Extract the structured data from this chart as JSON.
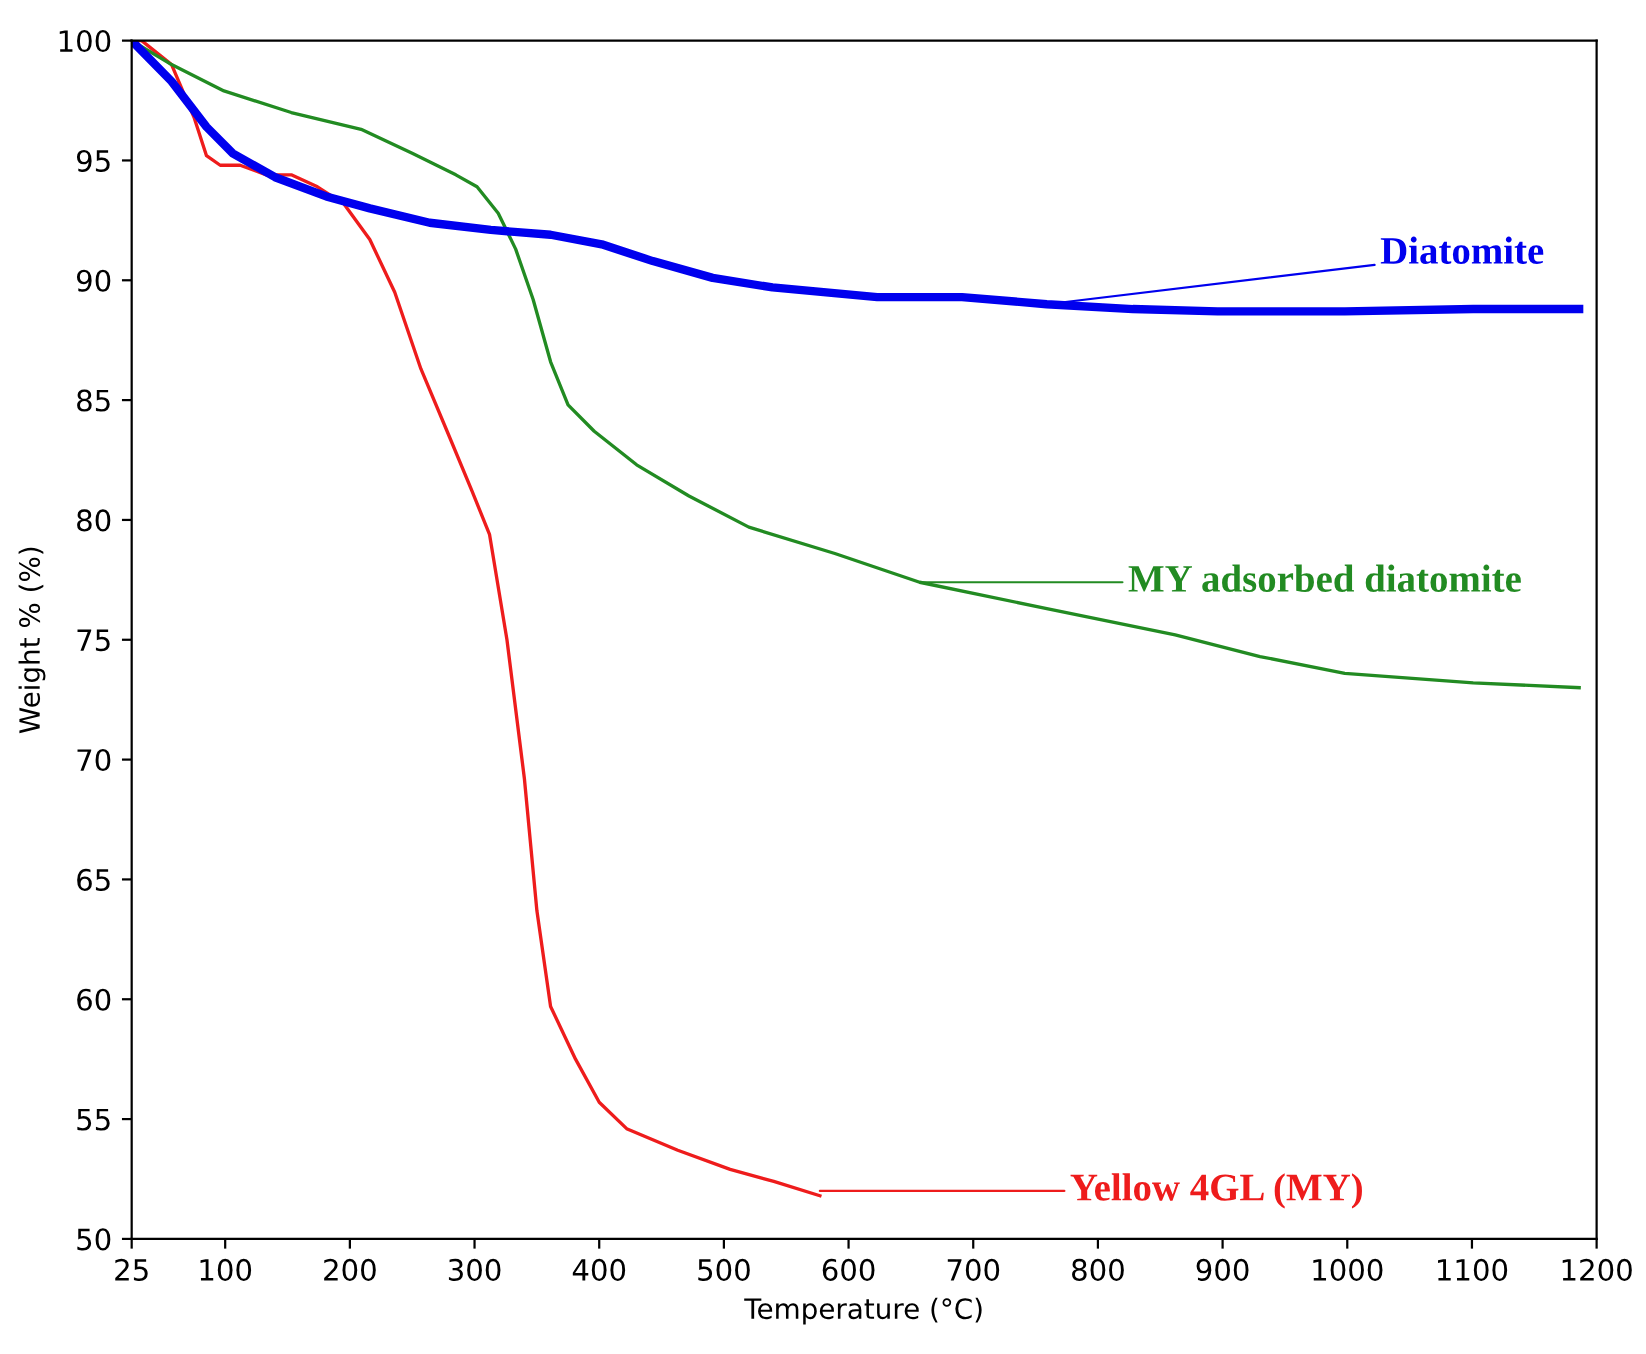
{
  "chart_data": {
    "type": "line",
    "xlabel": "Temperature (°C)",
    "ylabel": "Weight % (%)",
    "xlim": [
      25,
      1200
    ],
    "ylim": [
      50,
      100
    ],
    "xticks": [
      25,
      100,
      200,
      300,
      400,
      500,
      600,
      700,
      800,
      900,
      1000,
      1100,
      1200
    ],
    "yticks": [
      50,
      55,
      60,
      65,
      70,
      75,
      80,
      85,
      90,
      95,
      100
    ],
    "grid": false,
    "legend": false,
    "series": [
      {
        "color": "#ee1c1c",
        "x": [
          25,
          33,
          57,
          75,
          85,
          96,
          112,
          133,
          153,
          174,
          195,
          216,
          236,
          257,
          278,
          298,
          312,
          326,
          340,
          350,
          361,
          381,
          400,
          422,
          463,
          505,
          540,
          577
        ],
        "values": [
          100,
          100,
          99,
          96.8,
          95.2,
          94.8,
          94.8,
          94.4,
          94.4,
          93.9,
          93.2,
          91.7,
          89.5,
          86.3,
          83.7,
          81.2,
          79.4,
          75,
          69.2,
          63.7,
          59.7,
          57.5,
          55.7,
          54.6,
          53.7,
          52.9,
          52.4,
          51.8
        ]
      },
      {
        "color": "#228b22",
        "x": [
          25,
          57,
          99,
          153,
          209,
          250,
          285,
          302,
          319,
          333,
          347,
          361,
          375,
          396,
          430,
          472,
          520,
          589,
          657,
          759,
          862,
          930,
          998,
          1101,
          1186
        ],
        "values": [
          100,
          99,
          97.9,
          97,
          96.3,
          95.3,
          94.4,
          93.9,
          92.8,
          91.3,
          89.2,
          86.6,
          84.8,
          83.7,
          82.3,
          81,
          79.7,
          78.6,
          77.4,
          76.3,
          75.2,
          74.3,
          73.6,
          73.2,
          73.0
        ]
      },
      {
        "color": "#0000ee",
        "x": [
          25,
          57,
          85,
          106,
          140,
          181,
          216,
          264,
          313,
          361,
          402,
          443,
          491,
          539,
          623,
          691,
          759,
          828,
          896,
          998,
          1101,
          1186
        ],
        "values": [
          100,
          98.3,
          96.4,
          95.3,
          94.3,
          93.5,
          93,
          92.4,
          92.1,
          91.9,
          91.5,
          90.8,
          90.1,
          89.7,
          89.3,
          89.3,
          89.0,
          88.8,
          88.7,
          88.7,
          88.8,
          88.8
        ]
      }
    ],
    "annotations": [
      {
        "text": "Yellow 4GL (MY)",
        "x": 577,
        "y": 52.0
      },
      {
        "text": "MY adsorbed diatomite",
        "x": 657,
        "y": 77.4
      },
      {
        "text": "Diatomite",
        "x": 759,
        "y": 89.0
      }
    ]
  }
}
